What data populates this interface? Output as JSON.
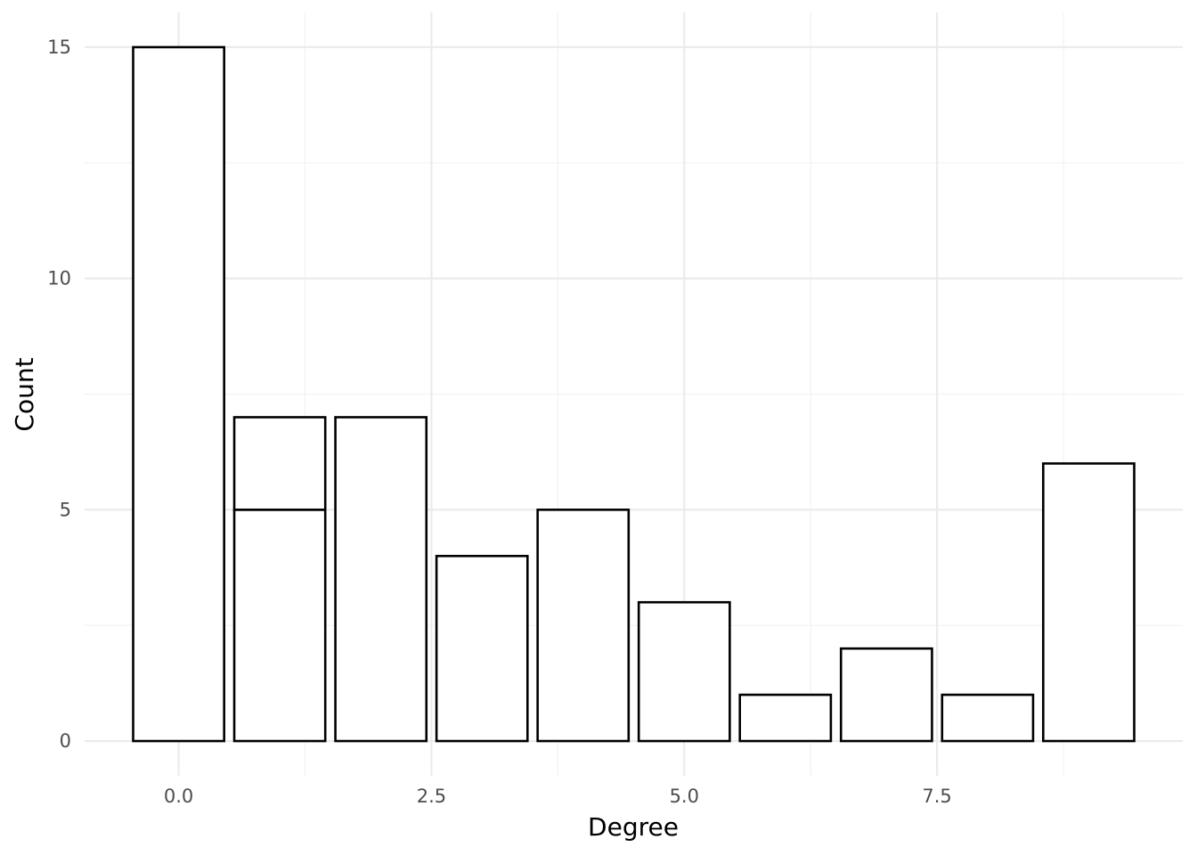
{
  "chart_data": {
    "type": "bar",
    "title": "",
    "xlabel": "Degree",
    "ylabel": "Count",
    "xlim": [
      -0.93,
      9.93
    ],
    "ylim": [
      -0.75,
      15.75
    ],
    "x_ticks": [
      0,
      2.5,
      5,
      7.5
    ],
    "x_tick_labels": [
      "0.0",
      "2.5",
      "5.0",
      "7.5"
    ],
    "y_ticks": [
      0,
      5,
      10,
      15
    ],
    "y_tick_labels": [
      "0",
      "5",
      "10",
      "15"
    ],
    "bar_width": 0.9,
    "grid": true,
    "bars": [
      {
        "x": 0,
        "segments": [
          15
        ]
      },
      {
        "x": 1,
        "segments": [
          5,
          2
        ]
      },
      {
        "x": 2,
        "segments": [
          7
        ]
      },
      {
        "x": 3,
        "segments": [
          4
        ]
      },
      {
        "x": 4,
        "segments": [
          5
        ]
      },
      {
        "x": 5,
        "segments": [
          3
        ]
      },
      {
        "x": 6,
        "segments": [
          1
        ]
      },
      {
        "x": 7,
        "segments": [
          2
        ]
      },
      {
        "x": 8,
        "segments": [
          1
        ]
      },
      {
        "x": 9,
        "segments": [
          6
        ]
      }
    ]
  }
}
